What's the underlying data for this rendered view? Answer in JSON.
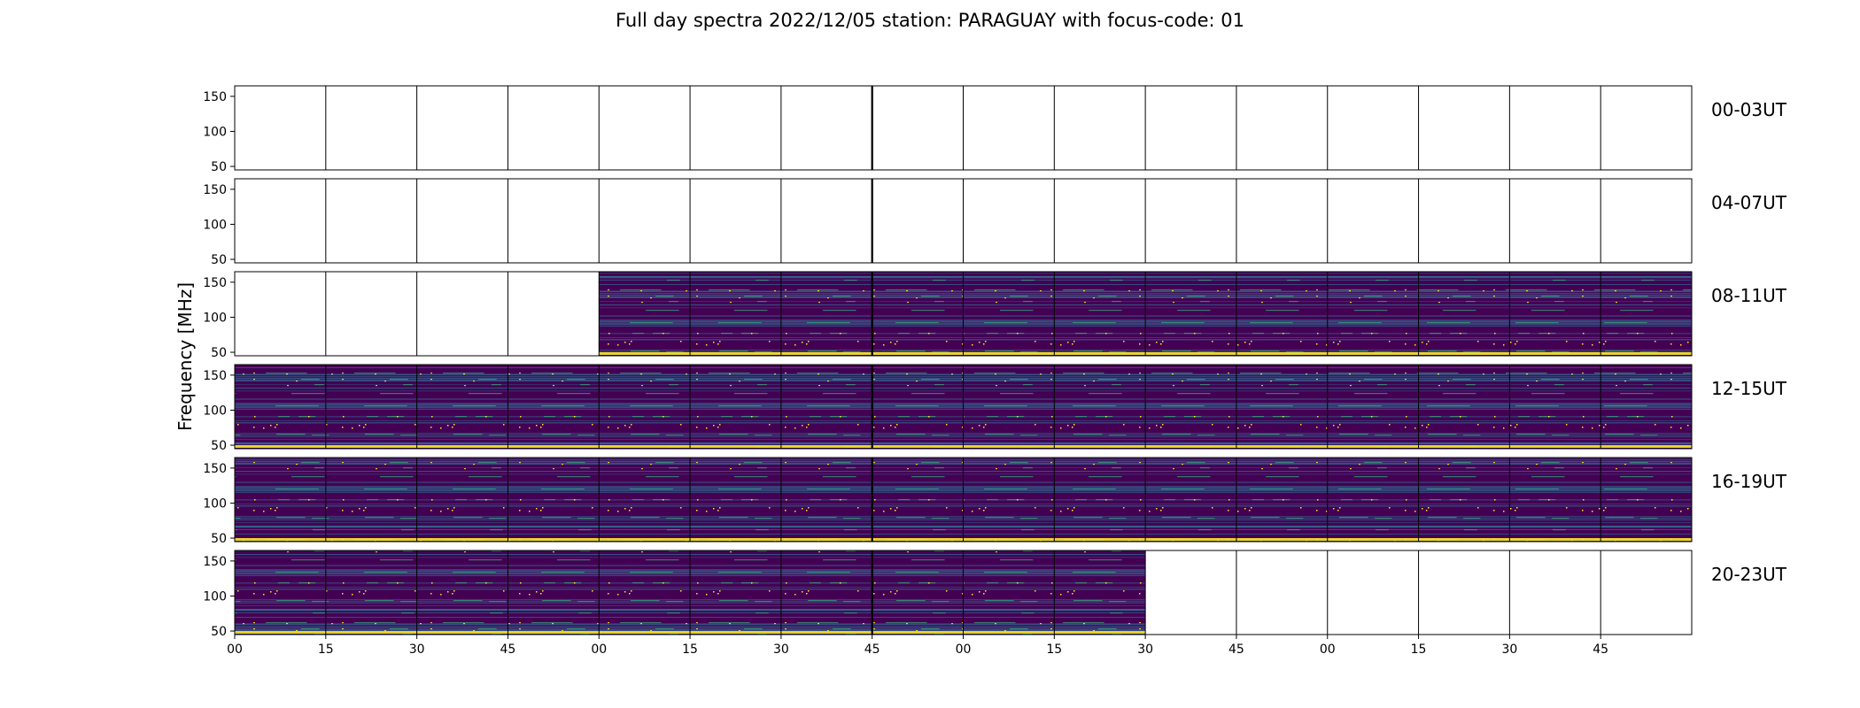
{
  "title": "Full day spectra 2022/12/05 station: PARAGUAY with focus-code: 01",
  "colors": {
    "background": "#ffffff",
    "frame": "#000000",
    "viridis_dark": "#440154",
    "viridis_mid": "#31688e",
    "viridis_green": "#35b779",
    "viridis_yellow": "#fde725"
  },
  "chart_data": {
    "type": "heatmap",
    "title": "Full day spectra 2022/12/05 station: PARAGUAY with focus-code: 01",
    "ylabel": "Frequency [MHz]",
    "ylim": [
      45,
      165
    ],
    "yticks": [
      "50",
      "100",
      "150"
    ],
    "xticks": [
      "00",
      "15",
      "30",
      "45",
      "00",
      "15",
      "30",
      "45",
      "00",
      "15",
      "30",
      "45",
      "00",
      "15",
      "30",
      "45"
    ],
    "colormap": "viridis",
    "panels_per_row": 16,
    "panel_minutes": 15,
    "rows": [
      {
        "label": "00-03UT",
        "data_panels": []
      },
      {
        "label": "04-07UT",
        "data_panels": []
      },
      {
        "label": "08-11UT",
        "data_panels": [
          4,
          5,
          6,
          7,
          8,
          9,
          10,
          11,
          12,
          13,
          14,
          15
        ]
      },
      {
        "label": "12-15UT",
        "data_panels": [
          0,
          1,
          2,
          3,
          4,
          5,
          6,
          7,
          8,
          9,
          10,
          11,
          12,
          13,
          14,
          15
        ]
      },
      {
        "label": "16-19UT",
        "data_panels": [
          0,
          1,
          2,
          3,
          4,
          5,
          6,
          7,
          8,
          9,
          10,
          11,
          12,
          13,
          14,
          15
        ]
      },
      {
        "label": "20-23UT",
        "data_panels": [
          0,
          1,
          2,
          3,
          4,
          5,
          6,
          7,
          8,
          9
        ]
      }
    ]
  }
}
